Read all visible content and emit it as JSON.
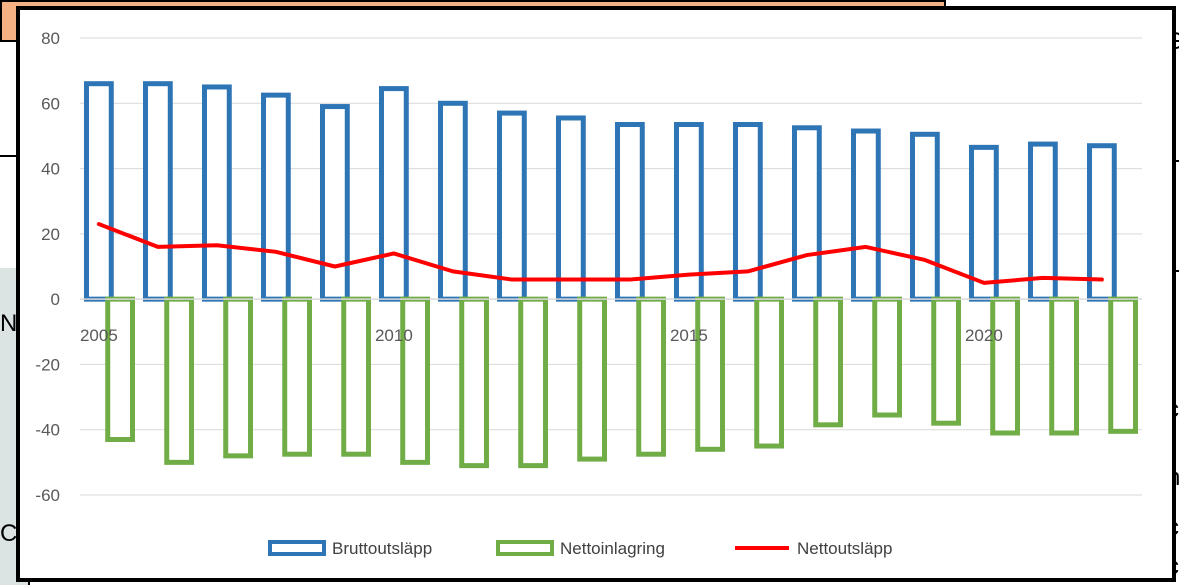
{
  "chart_data": {
    "type": "bar",
    "x": [
      2005,
      2006,
      2007,
      2008,
      2009,
      2010,
      2011,
      2012,
      2013,
      2014,
      2015,
      2016,
      2017,
      2018,
      2019,
      2020,
      2021,
      2022
    ],
    "series": [
      {
        "name": "Bruttoutsläpp",
        "type": "bar",
        "color": "#2e75b6",
        "values": [
          66,
          66,
          65,
          62.5,
          59,
          64.5,
          60,
          57,
          55.5,
          53.5,
          53.5,
          53.5,
          52.5,
          51.5,
          50.5,
          46.5,
          47.5,
          47
        ]
      },
      {
        "name": "Nettoinlagring",
        "type": "bar",
        "color": "#70ad47",
        "values": [
          -43,
          -50,
          -48,
          -47.5,
          -47.5,
          -50,
          -51,
          -51,
          -49,
          -47.5,
          -46,
          -45,
          -38.5,
          -35.5,
          -38,
          -41,
          -41,
          -40.5
        ]
      },
      {
        "name": "Nettoutsläpp",
        "type": "line",
        "color": "#ff0000",
        "values": [
          23,
          16,
          16.5,
          14.5,
          10,
          14,
          8.5,
          6,
          6,
          6,
          7.5,
          8.5,
          13.5,
          16,
          12,
          5,
          6.5,
          6
        ]
      }
    ],
    "x_tick_labels": [
      "2005",
      "2010",
      "2015",
      "2020"
    ],
    "y_tick_labels": [
      "80",
      "60",
      "40",
      "20",
      "0",
      "-20",
      "-40",
      "-60"
    ],
    "ylim": [
      -60,
      80
    ],
    "title": "",
    "xlabel": "",
    "ylabel": "",
    "grid": true,
    "legend_position": "bottom"
  },
  "background_fragments": {
    "left_letters": [
      "N",
      "C"
    ],
    "right_letters": [
      "C",
      "c",
      "n",
      "c",
      "c"
    ]
  }
}
